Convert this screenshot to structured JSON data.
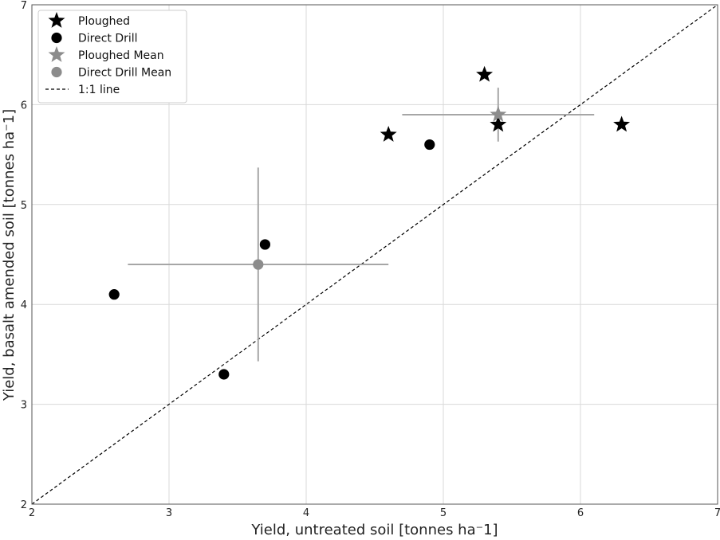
{
  "chart_data": {
    "type": "scatter",
    "xlabel": "Yield, untreated soil [tonnes ha⁻1]",
    "ylabel": "Yield, basalt amended soil [tonnes ha⁻1]",
    "xlim": [
      2,
      7
    ],
    "ylim": [
      2,
      7
    ],
    "xticks": [
      2,
      3,
      4,
      5,
      6,
      7
    ],
    "yticks": [
      2,
      3,
      4,
      5,
      6,
      7
    ],
    "grid": true,
    "legend_position": "top-left",
    "series": [
      {
        "name": "Ploughed",
        "marker": "star",
        "color": "#000000",
        "points": [
          {
            "x": 4.6,
            "y": 5.7
          },
          {
            "x": 5.3,
            "y": 6.3
          },
          {
            "x": 5.4,
            "y": 5.8
          },
          {
            "x": 6.3,
            "y": 5.8
          }
        ]
      },
      {
        "name": "Direct Drill",
        "marker": "circle",
        "color": "#000000",
        "points": [
          {
            "x": 2.6,
            "y": 4.1
          },
          {
            "x": 3.4,
            "y": 3.3
          },
          {
            "x": 3.7,
            "y": 4.6
          },
          {
            "x": 4.9,
            "y": 5.6
          }
        ]
      },
      {
        "name": "Ploughed Mean",
        "marker": "star",
        "color": "#8c8c8c",
        "points": [
          {
            "x": 5.4,
            "y": 5.9,
            "xerr": [
              4.7,
              6.1
            ],
            "yerr": [
              5.63,
              6.17
            ]
          }
        ]
      },
      {
        "name": "Direct Drill Mean",
        "marker": "circle",
        "color": "#8c8c8c",
        "points": [
          {
            "x": 3.65,
            "y": 4.4,
            "xerr": [
              2.7,
              4.6
            ],
            "yerr": [
              3.43,
              5.37
            ]
          }
        ]
      }
    ],
    "reference_line": {
      "name": "1:1 line",
      "style": "dashed",
      "color": "#000000",
      "from": [
        2,
        2
      ],
      "to": [
        7,
        7
      ]
    }
  }
}
